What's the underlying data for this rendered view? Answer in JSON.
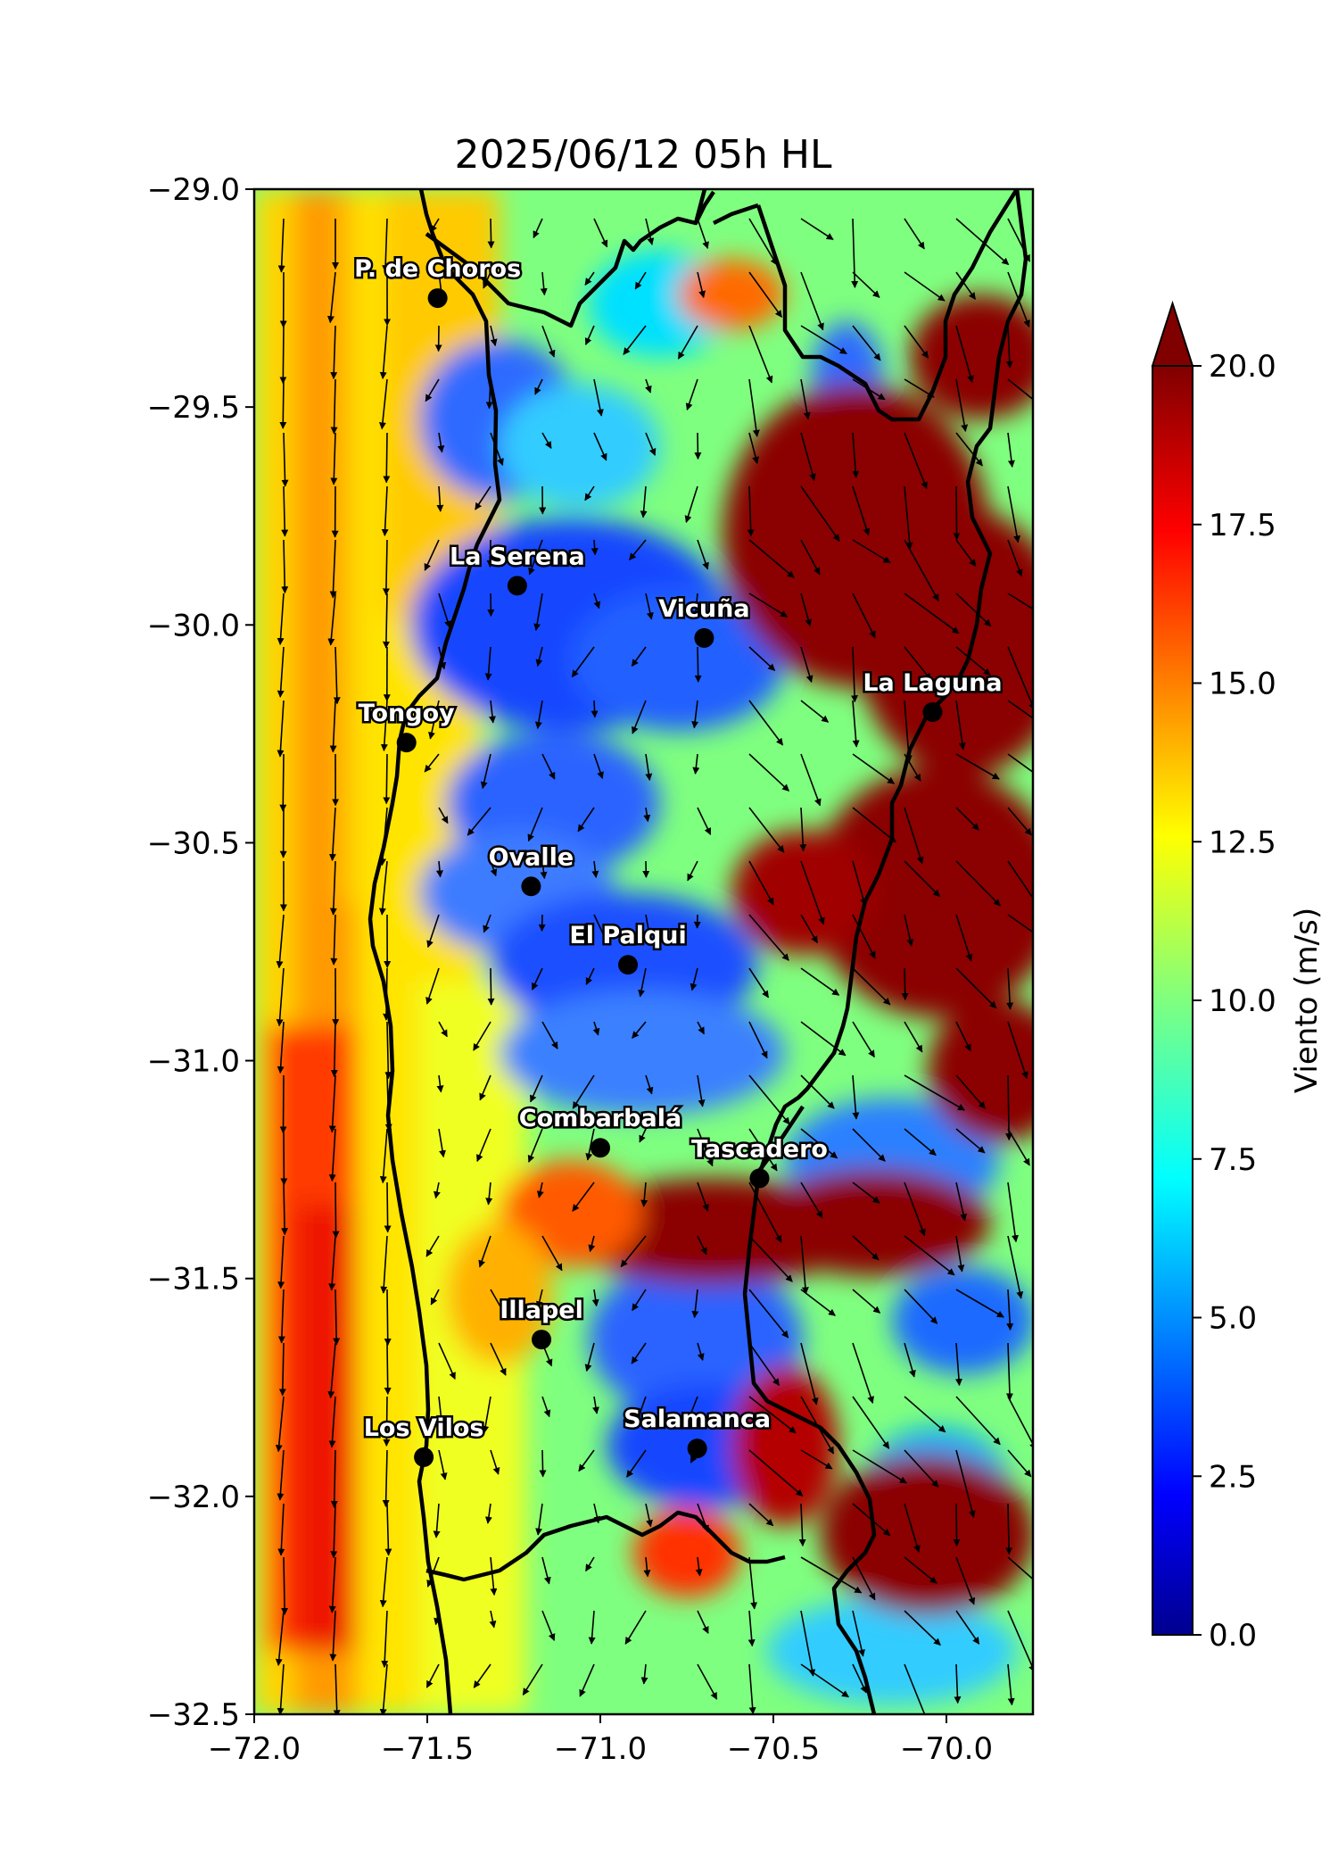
{
  "title": "2025/06/12 05h HL",
  "x_ticks": [
    {
      "value": -72.0,
      "label": "−72.0"
    },
    {
      "value": -71.5,
      "label": "−71.5"
    },
    {
      "value": -71.0,
      "label": "−71.0"
    },
    {
      "value": -70.5,
      "label": "−70.5"
    },
    {
      "value": -70.0,
      "label": "−70.0"
    }
  ],
  "y_ticks": [
    {
      "value": -29.0,
      "label": "−29.0"
    },
    {
      "value": -29.5,
      "label": "−29.5"
    },
    {
      "value": -30.0,
      "label": "−30.0"
    },
    {
      "value": -30.5,
      "label": "−30.5"
    },
    {
      "value": -31.0,
      "label": "−31.0"
    },
    {
      "value": -31.5,
      "label": "−31.5"
    },
    {
      "value": -32.0,
      "label": "−32.0"
    },
    {
      "value": -32.5,
      "label": "−32.5"
    }
  ],
  "lon_range": [
    -72.0,
    -69.75
  ],
  "lat_range": [
    -32.5,
    -29.0
  ],
  "colorbar": {
    "label": "Viento (m/s)",
    "range": [
      0,
      20
    ],
    "extend": "max",
    "colormap": "jet",
    "ticks": [
      {
        "value": 0,
        "label": "0.0"
      },
      {
        "value": 2.5,
        "label": "2.5"
      },
      {
        "value": 5,
        "label": "5.0"
      },
      {
        "value": 7.5,
        "label": "7.5"
      },
      {
        "value": 10,
        "label": "10.0"
      },
      {
        "value": 12.5,
        "label": "12.5"
      },
      {
        "value": 15,
        "label": "15.0"
      },
      {
        "value": 17.5,
        "label": "17.5"
      },
      {
        "value": 20,
        "label": "20.0"
      }
    ]
  },
  "cities": [
    {
      "name": "P. de Choros",
      "lon": -71.47,
      "lat": -29.25
    },
    {
      "name": "La Serena",
      "lon": -71.24,
      "lat": -29.91
    },
    {
      "name": "Vicuña",
      "lon": -70.7,
      "lat": -30.03
    },
    {
      "name": "La Laguna",
      "lon": -70.04,
      "lat": -30.2
    },
    {
      "name": "Tongoy",
      "lon": -71.56,
      "lat": -30.27
    },
    {
      "name": "Ovalle",
      "lon": -71.2,
      "lat": -30.6
    },
    {
      "name": "El Palqui",
      "lon": -70.92,
      "lat": -30.78
    },
    {
      "name": "Combarbalá",
      "lon": -71.0,
      "lat": -31.2
    },
    {
      "name": "Tascadero",
      "lon": -70.54,
      "lat": -31.27
    },
    {
      "name": "Illapel",
      "lon": -71.17,
      "lat": -31.64
    },
    {
      "name": "Los Vilos",
      "lon": -71.51,
      "lat": -31.91
    },
    {
      "name": "Salamanca",
      "lon": -70.72,
      "lat": -31.89
    }
  ],
  "colors": {
    "ocean_high": "#ff7a00",
    "coast_yellow": "#ffd600",
    "valley_blue": "#1f57ff",
    "mountain_red": "#8b0000",
    "boundary": "#000000"
  }
}
